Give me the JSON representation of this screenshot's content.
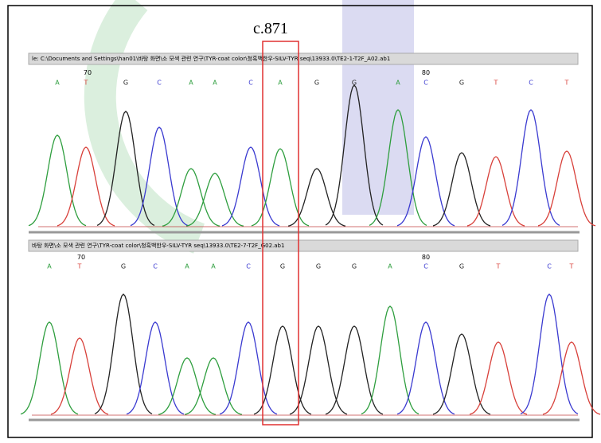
{
  "title": "c.871",
  "panels": [
    {
      "file": "le: C:\\Documents and Settings\\han01\\바탕 화면\\소 모색 관련 연구\\TYR-coat color\\청흑백한우-SILV-TYR seq\\13933.0\\TE2-1-T2F_A02.ab1",
      "ruler": [
        70,
        80
      ],
      "bases": [
        "A",
        "T",
        "G",
        "C",
        "A",
        "A",
        "C",
        "A",
        "G",
        "G",
        "A",
        "C",
        "G",
        "T",
        "C",
        "T"
      ]
    },
    {
      "file": "바탕 화면\\소 모색 관련 연구\\TYR-coat color\\청흑백한우-SILV-TYR seq\\13933.0\\TE2-7-T2F_G02.ab1",
      "ruler": [
        70,
        80
      ],
      "bases": [
        "A",
        "T",
        "G",
        "C",
        "A",
        "A",
        "C",
        "G",
        "G",
        "G",
        "A",
        "C",
        "G",
        "T",
        "C",
        "T"
      ]
    }
  ]
}
